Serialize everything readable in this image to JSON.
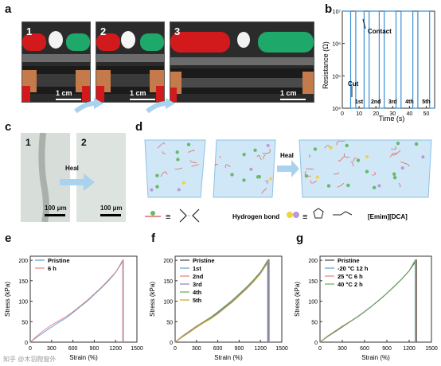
{
  "panels": {
    "a": "a",
    "b": "b",
    "c": "c",
    "d": "d",
    "e": "e",
    "f": "f",
    "g": "g"
  },
  "panel_a": {
    "photos": [
      {
        "num": "1",
        "scale": "1 cm"
      },
      {
        "num": "2",
        "scale": "1 cm"
      },
      {
        "num": "3",
        "scale": "1 cm"
      }
    ]
  },
  "panel_b": {
    "ylabel": "Resistance (Ω)",
    "xlabel": "Time (s)",
    "annotations": {
      "contact": "Contact",
      "cut": "Cut"
    },
    "cycle_labels": [
      "1st",
      "2nd",
      "3rd",
      "4th",
      "5th"
    ],
    "y_ticks": [
      "10⁴",
      "10⁵",
      "10⁶",
      "10⁷"
    ],
    "x_ticks": [
      "0",
      "10",
      "20",
      "30",
      "40",
      "50"
    ]
  },
  "panel_c": {
    "photos": [
      {
        "num": "1",
        "scale": "100 μm"
      },
      {
        "num": "2",
        "scale": "100 μm"
      }
    ],
    "arrow_label": "Heal"
  },
  "panel_d": {
    "arrow_label": "Heal",
    "legend": {
      "hbond": "Hydrogen bond",
      "il": "[Emim][DCA]",
      "equiv": "≡"
    }
  },
  "axes_common": {
    "xlabel": "Strain (%)",
    "ylabel": "Stress (kPa)",
    "x_ticks": [
      "0",
      "300",
      "600",
      "900",
      "1200",
      "1500"
    ],
    "y_ticks": [
      "0",
      "50",
      "100",
      "150",
      "200"
    ]
  },
  "chart_data": [
    {
      "type": "line",
      "panel": "b",
      "xlabel": "Time (s)",
      "ylabel": "Resistance (Ω)",
      "ylog": true,
      "xlim": [
        0,
        55
      ],
      "ylim": [
        10000,
        10000000
      ],
      "series": [
        {
          "x": [
            0,
            5,
            5,
            8,
            8,
            13,
            13,
            16,
            16,
            22,
            22,
            25,
            25,
            32,
            32,
            35,
            35,
            42,
            42,
            45,
            45,
            52,
            52,
            55
          ],
          "y": [
            10000000,
            10000000,
            10000,
            10000,
            10000000,
            10000000,
            10000,
            10000,
            10000000,
            10000000,
            10000,
            10000,
            10000000,
            10000000,
            10000,
            10000,
            10000000,
            10000000,
            10000,
            10000,
            10000000,
            10000000,
            10000,
            10000
          ]
        }
      ],
      "color": "#3a8fd6"
    },
    {
      "type": "line",
      "panel": "e",
      "xlabel": "Strain (%)",
      "ylabel": "Stress (kPa)",
      "xlim": [
        0,
        1500
      ],
      "ylim": [
        0,
        210
      ],
      "series": [
        {
          "name": "Pristine",
          "color": "#5b9bd5",
          "x": [
            0,
            100,
            200,
            300,
            400,
            500,
            600,
            700,
            800,
            900,
            1000,
            1100,
            1200,
            1310,
            1310
          ],
          "y": [
            0,
            13,
            25,
            37,
            48,
            59,
            72,
            86,
            100,
            116,
            132,
            150,
            170,
            200,
            0
          ]
        },
        {
          "name": "6 h",
          "color": "#e8807a",
          "x": [
            0,
            100,
            200,
            300,
            400,
            500,
            600,
            700,
            800,
            900,
            1000,
            1100,
            1200,
            1300,
            1300
          ],
          "y": [
            0,
            16,
            30,
            42,
            52,
            62,
            74,
            88,
            102,
            118,
            134,
            152,
            171,
            200,
            0
          ]
        }
      ]
    },
    {
      "type": "line",
      "panel": "f",
      "xlabel": "Strain (%)",
      "ylabel": "Stress (kPa)",
      "xlim": [
        0,
        1500
      ],
      "ylim": [
        0,
        210
      ],
      "series": [
        {
          "name": "Pristine",
          "color": "#444444",
          "x": [
            0,
            100,
            200,
            300,
            400,
            500,
            600,
            700,
            800,
            900,
            1000,
            1100,
            1200,
            1310,
            1310
          ],
          "y": [
            0,
            13,
            25,
            37,
            48,
            59,
            72,
            86,
            100,
            116,
            132,
            150,
            170,
            200,
            0
          ]
        },
        {
          "name": "1st",
          "color": "#5b9bd5",
          "x": [
            0,
            100,
            200,
            300,
            400,
            500,
            600,
            700,
            800,
            900,
            1000,
            1100,
            1200,
            1300,
            1300
          ],
          "y": [
            0,
            14,
            26,
            38,
            49,
            60,
            73,
            87,
            101,
            117,
            133,
            151,
            171,
            200,
            0
          ]
        },
        {
          "name": "2nd",
          "color": "#e8807a",
          "x": [
            0,
            100,
            200,
            300,
            400,
            500,
            600,
            700,
            800,
            900,
            1000,
            1100,
            1200,
            1320,
            1320
          ],
          "y": [
            0,
            15,
            27,
            38,
            48,
            58,
            70,
            84,
            98,
            114,
            130,
            148,
            168,
            200,
            0
          ]
        },
        {
          "name": "3rd",
          "color": "#8e7cc3",
          "x": [
            0,
            100,
            200,
            300,
            400,
            500,
            600,
            700,
            800,
            900,
            1000,
            1100,
            1200,
            1315,
            1315
          ],
          "y": [
            0,
            12,
            24,
            36,
            47,
            58,
            71,
            85,
            99,
            115,
            131,
            149,
            169,
            200,
            0
          ]
        },
        {
          "name": "4th",
          "color": "#6aa84f",
          "x": [
            0,
            100,
            200,
            300,
            400,
            500,
            600,
            700,
            800,
            900,
            1000,
            1100,
            1200,
            1305,
            1305
          ],
          "y": [
            0,
            14,
            27,
            39,
            50,
            61,
            74,
            88,
            102,
            118,
            134,
            152,
            172,
            200,
            0
          ]
        },
        {
          "name": "5th",
          "color": "#d4a017",
          "x": [
            0,
            100,
            200,
            300,
            400,
            500,
            600,
            700,
            800,
            900,
            1000,
            1100,
            1200,
            1325,
            1325
          ],
          "y": [
            0,
            13,
            25,
            36,
            47,
            57,
            69,
            83,
            97,
            113,
            129,
            147,
            167,
            200,
            0
          ]
        }
      ]
    },
    {
      "type": "line",
      "panel": "g",
      "xlabel": "Strain (%)",
      "ylabel": "Stress (kPa)",
      "xlim": [
        0,
        1500
      ],
      "ylim": [
        0,
        210
      ],
      "series": [
        {
          "name": "Pristine",
          "color": "#444444",
          "x": [
            0,
            100,
            200,
            300,
            400,
            500,
            600,
            700,
            800,
            900,
            1000,
            1100,
            1200,
            1300,
            1300
          ],
          "y": [
            0,
            13,
            25,
            37,
            49,
            61,
            74,
            88,
            103,
            119,
            136,
            154,
            174,
            200,
            0
          ]
        },
        {
          "name": "-20 °C 12 h",
          "color": "#5b9bd5",
          "x": [
            0,
            100,
            200,
            300,
            400,
            500,
            600,
            700,
            800,
            900,
            1000,
            1100,
            1200,
            1280,
            1280
          ],
          "y": [
            0,
            14,
            26,
            38,
            50,
            62,
            75,
            89,
            104,
            120,
            137,
            155,
            175,
            200,
            0
          ]
        },
        {
          "name": "25 °C 6 h",
          "color": "#e8807a",
          "x": [
            0,
            100,
            200,
            300,
            400,
            500,
            600,
            700,
            800,
            900,
            1000,
            1100,
            1200,
            1290,
            1290
          ],
          "y": [
            0,
            15,
            27,
            39,
            50,
            61,
            74,
            88,
            103,
            119,
            136,
            154,
            174,
            200,
            0
          ]
        },
        {
          "name": "40 °C 2 h",
          "color": "#6aa84f",
          "x": [
            0,
            100,
            200,
            300,
            400,
            500,
            600,
            700,
            800,
            900,
            1000,
            1100,
            1200,
            1285,
            1285
          ],
          "y": [
            0,
            13,
            26,
            38,
            49,
            61,
            74,
            88,
            103,
            119,
            136,
            154,
            174,
            200,
            0
          ]
        }
      ]
    }
  ],
  "watermark": "知乎 @木羽爬窗外"
}
